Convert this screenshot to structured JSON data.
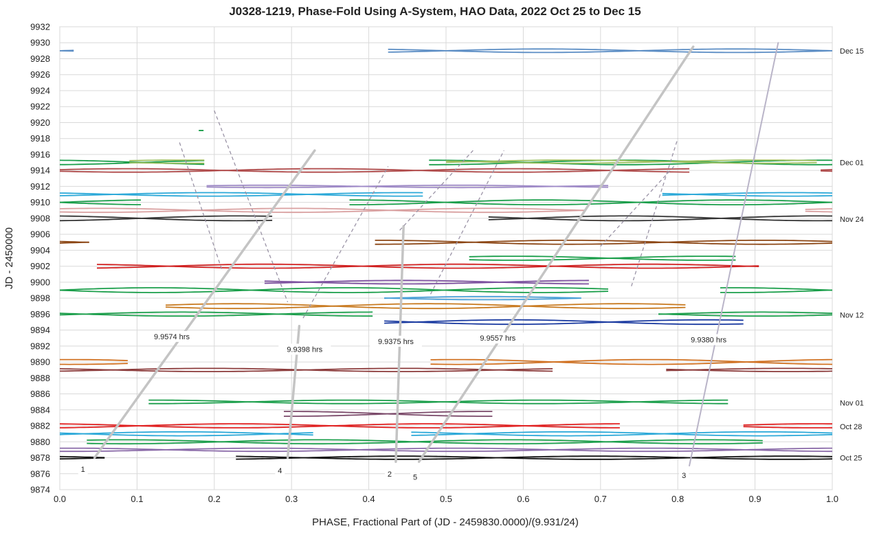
{
  "chart_data": {
    "type": "line",
    "title": "J0328-1219, Phase-Fold Using A-System, HAO Data, 2022 Oct 25 to Dec 15",
    "xlabel": "PHASE, Fractional Part of (JD - 2459830.0000)/(9.931/24)",
    "ylabel": "JD - 2450000",
    "xlim": [
      0,
      1
    ],
    "ylim": [
      9874,
      9932
    ],
    "x_ticks": [
      "0.0",
      "0.1",
      "0.2",
      "0.3",
      "0.4",
      "0.5",
      "0.6",
      "0.7",
      "0.8",
      "0.9",
      "1.0"
    ],
    "y_ticks": [
      "9874",
      "9876",
      "9878",
      "9880",
      "9882",
      "9884",
      "9886",
      "9888",
      "9890",
      "9892",
      "9894",
      "9896",
      "9898",
      "9900",
      "9902",
      "9904",
      "9906",
      "9908",
      "9910",
      "9912",
      "9914",
      "9916",
      "9918",
      "9920",
      "9922",
      "9924",
      "9926",
      "9928",
      "9930",
      "9932"
    ],
    "grid": true,
    "date_labels": [
      {
        "text": "Dec 15",
        "y": 9929.0
      },
      {
        "text": "Dec 01",
        "y": 9915.0
      },
      {
        "text": "Nov 24",
        "y": 9907.9
      },
      {
        "text": "Nov 12",
        "y": 9895.9
      },
      {
        "text": "Nov 01",
        "y": 9884.9
      },
      {
        "text": "Oct 28",
        "y": 9881.9
      },
      {
        "text": "Oct 25",
        "y": 9878.0
      }
    ],
    "series": [
      {
        "color": "#5b8dc4",
        "y": 9929.0,
        "segments": [
          [
            0.0,
            0.018
          ],
          [
            0.425,
            1.0
          ]
        ],
        "amp": 0.22
      },
      {
        "color": "#1a9e4a",
        "y": 9919.0,
        "segments": [
          [
            0.18,
            0.186
          ]
        ],
        "amp": 0.0
      },
      {
        "color": "#1a9e4a",
        "y": 9915.0,
        "segments": [
          [
            0.0,
            0.187
          ],
          [
            0.478,
            1.0
          ]
        ],
        "amp": 0.28
      },
      {
        "color": "#9dbf5f",
        "y": 9915.1,
        "segments": [
          [
            0.09,
            0.187
          ],
          [
            0.5,
            0.98
          ]
        ],
        "amp": 0.2
      },
      {
        "color": "#b04a4a",
        "y": 9914.0,
        "segments": [
          [
            0.0,
            0.815
          ],
          [
            0.985,
            1.0
          ]
        ],
        "amp": 0.22
      },
      {
        "color": "#a08cc8",
        "y": 9912.0,
        "segments": [
          [
            0.19,
            0.71
          ]
        ],
        "amp": 0.15
      },
      {
        "color": "#2aa8d8",
        "y": 9911.0,
        "segments": [
          [
            0.0,
            0.47
          ],
          [
            0.78,
            1.0
          ]
        ],
        "amp": 0.22
      },
      {
        "color": "#1a9e4a",
        "y": 9910.0,
        "segments": [
          [
            0.0,
            0.105
          ],
          [
            0.375,
            1.0
          ]
        ],
        "amp": 0.3
      },
      {
        "color": "#d9a0a0",
        "y": 9909.0,
        "segments": [
          [
            0.0,
            0.68
          ],
          [
            0.965,
            1.0
          ]
        ],
        "amp": 0.25
      },
      {
        "color": "#333333",
        "y": 9908.0,
        "segments": [
          [
            0.0,
            0.275
          ],
          [
            0.555,
            1.0
          ]
        ],
        "amp": 0.3
      },
      {
        "color": "#8b4513",
        "y": 9905.0,
        "segments": [
          [
            0.0,
            0.038
          ],
          [
            0.408,
            1.0
          ]
        ],
        "amp": 0.25
      },
      {
        "color": "#1a9e4a",
        "y": 9903.0,
        "segments": [
          [
            0.53,
            0.875
          ]
        ],
        "amp": 0.25
      },
      {
        "color": "#d02020",
        "y": 9902.0,
        "segments": [
          [
            0.048,
            0.905
          ]
        ],
        "amp": 0.25
      },
      {
        "color": "#7b4f9e",
        "y": 9900.0,
        "segments": [
          [
            0.265,
            0.685
          ]
        ],
        "amp": 0.22
      },
      {
        "color": "#1a9e4a",
        "y": 9899.0,
        "segments": [
          [
            0.0,
            0.71
          ],
          [
            0.855,
            1.0
          ]
        ],
        "amp": 0.3
      },
      {
        "color": "#4aa0d8",
        "y": 9898.0,
        "segments": [
          [
            0.42,
            0.675
          ]
        ],
        "amp": 0.2
      },
      {
        "color": "#c87a20",
        "y": 9897.0,
        "segments": [
          [
            0.137,
            0.81
          ]
        ],
        "amp": 0.3
      },
      {
        "color": "#1a9e4a",
        "y": 9896.0,
        "segments": [
          [
            0.0,
            0.405
          ],
          [
            0.775,
            1.0
          ]
        ],
        "amp": 0.25
      },
      {
        "color": "#1a3aa0",
        "y": 9895.0,
        "segments": [
          [
            0.42,
            0.885
          ]
        ],
        "amp": 0.28
      },
      {
        "color": "#d07020",
        "y": 9890.0,
        "segments": [
          [
            0.0,
            0.088
          ],
          [
            0.48,
            1.0
          ]
        ],
        "amp": 0.3
      },
      {
        "color": "#8b3a3a",
        "y": 9889.0,
        "segments": [
          [
            0.0,
            0.638
          ],
          [
            0.785,
            1.0
          ]
        ],
        "amp": 0.2
      },
      {
        "color": "#1a9e4a",
        "y": 9885.0,
        "segments": [
          [
            0.115,
            0.865
          ]
        ],
        "amp": 0.22
      },
      {
        "color": "#7b4a6a",
        "y": 9883.5,
        "segments": [
          [
            0.29,
            0.56
          ]
        ],
        "amp": 0.3
      },
      {
        "color": "#e02020",
        "y": 9882.0,
        "segments": [
          [
            0.0,
            0.725
          ],
          [
            0.885,
            1.0
          ]
        ],
        "amp": 0.25
      },
      {
        "color": "#2aa8d8",
        "y": 9881.0,
        "segments": [
          [
            0.0,
            0.328
          ],
          [
            0.455,
            1.0
          ]
        ],
        "amp": 0.25
      },
      {
        "color": "#1a9e4a",
        "y": 9880.0,
        "segments": [
          [
            0.035,
            0.91
          ]
        ],
        "amp": 0.25
      },
      {
        "color": "#8a6aa8",
        "y": 9879.0,
        "segments": [
          [
            0.0,
            1.0
          ]
        ],
        "amp": 0.2
      },
      {
        "color": "#111111",
        "y": 9878.0,
        "segments": [
          [
            0.0,
            0.058
          ],
          [
            0.228,
            1.0
          ]
        ],
        "amp": 0.2
      }
    ],
    "solid_lines": [
      {
        "label": "1",
        "x": [
          0.045,
          0.33
        ],
        "y": [
          9878.0,
          9916.5
        ]
      },
      {
        "label": "4",
        "x": [
          0.295,
          0.31
        ],
        "y": [
          9878.0,
          9894.5
        ]
      },
      {
        "label": "2",
        "x": [
          0.435,
          0.445
        ],
        "y": [
          9877.5,
          9907.0
        ]
      },
      {
        "label": "5",
        "x": [
          0.465,
          0.82
        ],
        "y": [
          9877.5,
          9929.5
        ]
      },
      {
        "label": "3",
        "x": [
          0.815,
          0.93
        ],
        "y": [
          9877.0,
          9930.0
        ]
      }
    ],
    "dashed_lines": [
      {
        "x": [
          0.155,
          0.21
        ],
        "y": [
          9917.5,
          9901.5
        ]
      },
      {
        "x": [
          0.2,
          0.295
        ],
        "y": [
          9921.5,
          9897.5
        ]
      },
      {
        "x": [
          0.315,
          0.425
        ],
        "y": [
          9895.5,
          9914.5
        ]
      },
      {
        "x": [
          0.44,
          0.535
        ],
        "y": [
          9906.5,
          9916.5
        ]
      },
      {
        "x": [
          0.48,
          0.575
        ],
        "y": [
          9898.5,
          9916.5
        ]
      },
      {
        "x": [
          0.7,
          0.795
        ],
        "y": [
          9904.5,
          9914.5
        ]
      },
      {
        "x": [
          0.74,
          0.8
        ],
        "y": [
          9899.5,
          9918.0
        ]
      }
    ],
    "annotations": [
      {
        "text": "9.9574 hrs",
        "x": 0.145,
        "y": 9893.2
      },
      {
        "text": "9.9398 hrs",
        "x": 0.317,
        "y": 9891.6
      },
      {
        "text": "9.9375 hrs",
        "x": 0.435,
        "y": 9892.6
      },
      {
        "text": "9.9557 hrs",
        "x": 0.567,
        "y": 9893.0
      },
      {
        "text": "9.9380 hrs",
        "x": 0.84,
        "y": 9892.8
      },
      {
        "text": "1",
        "x": 0.03,
        "y": 9876.6
      },
      {
        "text": "4",
        "x": 0.285,
        "y": 9876.4
      },
      {
        "text": "2",
        "x": 0.427,
        "y": 9876.0
      },
      {
        "text": "5",
        "x": 0.46,
        "y": 9875.6
      },
      {
        "text": "3",
        "x": 0.808,
        "y": 9875.8
      }
    ]
  }
}
